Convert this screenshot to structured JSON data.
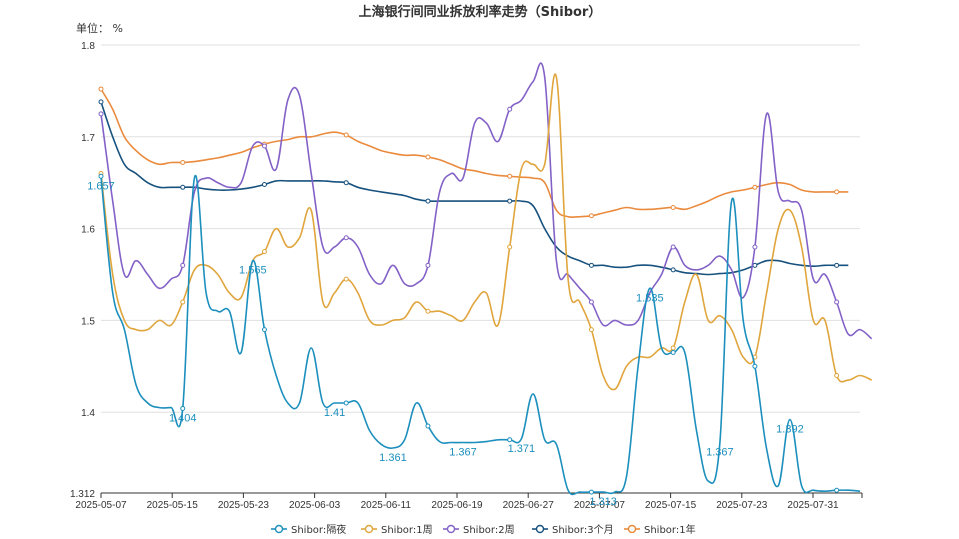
{
  "chart_data": {
    "type": "line",
    "title": "上海银行间同业拆放利率走势（Shibor）",
    "unit_label": "单位：  %",
    "x_ticks": [
      "2025-05-07",
      "2025-05-15",
      "2025-05-23",
      "2025-06-03",
      "2025-06-11",
      "2025-06-19",
      "2025-06-27",
      "2025-07-07",
      "2025-07-15",
      "2025-07-23",
      "2025-07-31"
    ],
    "y_ticks": [
      "1.8",
      "1.7",
      "1.6",
      "1.5",
      "1.4",
      "1.312"
    ],
    "ylim": [
      1.312,
      1.8
    ],
    "grid": true,
    "legend_position": "bottom",
    "series": [
      {
        "name": "Shibor:隔夜",
        "color": "#1c8fbd",
        "values": [
          1.657,
          1.53,
          1.49,
          1.43,
          1.41,
          1.405,
          1.405,
          1.404,
          1.655,
          1.53,
          1.51,
          1.51,
          1.465,
          1.565,
          1.49,
          1.44,
          1.41,
          1.41,
          1.47,
          1.41,
          1.41,
          1.41,
          1.41,
          1.38,
          1.365,
          1.361,
          1.37,
          1.41,
          1.385,
          1.368,
          1.367,
          1.367,
          1.367,
          1.368,
          1.37,
          1.37,
          1.371,
          1.42,
          1.37,
          1.365,
          1.315,
          1.313,
          1.313,
          1.313,
          1.313,
          1.33,
          1.45,
          1.535,
          1.47,
          1.465,
          1.465,
          1.38,
          1.325,
          1.367,
          1.63,
          1.5,
          1.45,
          1.36,
          1.32,
          1.392,
          1.32,
          1.315,
          1.314,
          1.315,
          1.315,
          1.314
        ]
      },
      {
        "name": "Shibor:1周",
        "color": "#e0a53c",
        "values": [
          1.66,
          1.55,
          1.5,
          1.49,
          1.49,
          1.5,
          1.495,
          1.52,
          1.555,
          1.56,
          1.55,
          1.53,
          1.525,
          1.565,
          1.575,
          1.6,
          1.58,
          1.59,
          1.62,
          1.52,
          1.53,
          1.545,
          1.53,
          1.5,
          1.495,
          1.5,
          1.503,
          1.52,
          1.51,
          1.51,
          1.505,
          1.5,
          1.52,
          1.53,
          1.495,
          1.58,
          1.665,
          1.67,
          1.67,
          1.765,
          1.545,
          1.52,
          1.49,
          1.44,
          1.425,
          1.45,
          1.46,
          1.46,
          1.47,
          1.47,
          1.52,
          1.55,
          1.5,
          1.505,
          1.49,
          1.46,
          1.46,
          1.53,
          1.6,
          1.62,
          1.58,
          1.5,
          1.5,
          1.44,
          1.435,
          1.44,
          1.435
        ]
      },
      {
        "name": "Shibor:2周",
        "color": "#8361c7",
        "values": [
          1.725,
          1.63,
          1.55,
          1.565,
          1.55,
          1.535,
          1.545,
          1.56,
          1.64,
          1.655,
          1.65,
          1.645,
          1.65,
          1.69,
          1.69,
          1.665,
          1.74,
          1.745,
          1.66,
          1.58,
          1.58,
          1.59,
          1.58,
          1.55,
          1.54,
          1.56,
          1.54,
          1.54,
          1.56,
          1.64,
          1.66,
          1.655,
          1.715,
          1.715,
          1.695,
          1.73,
          1.74,
          1.76,
          1.765,
          1.565,
          1.55,
          1.535,
          1.52,
          1.495,
          1.5,
          1.495,
          1.5,
          1.53,
          1.55,
          1.58,
          1.56,
          1.555,
          1.56,
          1.57,
          1.555,
          1.525,
          1.58,
          1.725,
          1.64,
          1.63,
          1.62,
          1.545,
          1.55,
          1.52,
          1.485,
          1.49,
          1.48
        ]
      },
      {
        "name": "Shibor:3个月",
        "color": "#17517e",
        "values": [
          1.738,
          1.7,
          1.67,
          1.66,
          1.65,
          1.645,
          1.645,
          1.645,
          1.645,
          1.643,
          1.642,
          1.642,
          1.643,
          1.645,
          1.648,
          1.652,
          1.652,
          1.652,
          1.652,
          1.652,
          1.651,
          1.65,
          1.645,
          1.642,
          1.64,
          1.638,
          1.636,
          1.632,
          1.63,
          1.63,
          1.63,
          1.63,
          1.63,
          1.63,
          1.63,
          1.63,
          1.63,
          1.625,
          1.6,
          1.58,
          1.57,
          1.565,
          1.56,
          1.56,
          1.558,
          1.558,
          1.56,
          1.56,
          1.558,
          1.555,
          1.552,
          1.551,
          1.55,
          1.551,
          1.552,
          1.555,
          1.56,
          1.565,
          1.565,
          1.562,
          1.56,
          1.559,
          1.56,
          1.56,
          1.56
        ]
      },
      {
        "name": "Shibor:1年",
        "color": "#ea8a3c",
        "values": [
          1.752,
          1.73,
          1.7,
          1.685,
          1.675,
          1.67,
          1.672,
          1.672,
          1.673,
          1.675,
          1.677,
          1.68,
          1.683,
          1.688,
          1.692,
          1.695,
          1.697,
          1.7,
          1.7,
          1.703,
          1.705,
          1.702,
          1.695,
          1.69,
          1.685,
          1.682,
          1.68,
          1.68,
          1.678,
          1.675,
          1.67,
          1.665,
          1.663,
          1.66,
          1.658,
          1.657,
          1.656,
          1.655,
          1.65,
          1.62,
          1.613,
          1.613,
          1.614,
          1.617,
          1.62,
          1.623,
          1.621,
          1.621,
          1.622,
          1.623,
          1.621,
          1.625,
          1.63,
          1.636,
          1.64,
          1.642,
          1.645,
          1.648,
          1.65,
          1.648,
          1.642,
          1.64,
          1.64,
          1.64,
          1.64
        ]
      }
    ],
    "data_labels": [
      {
        "series": 0,
        "index": 0,
        "text": "1.657"
      },
      {
        "series": 0,
        "index": 7,
        "text": "1.404"
      },
      {
        "series": 0,
        "index": 13,
        "text": "1.565"
      },
      {
        "series": 0,
        "index": 20,
        "text": "1.41"
      },
      {
        "series": 0,
        "index": 25,
        "text": "1.361"
      },
      {
        "series": 0,
        "index": 31,
        "text": "1.367"
      },
      {
        "series": 0,
        "index": 36,
        "text": "1.371"
      },
      {
        "series": 0,
        "index": 43,
        "text": "1.313"
      },
      {
        "series": 0,
        "index": 47,
        "text": "1.535"
      },
      {
        "series": 0,
        "index": 53,
        "text": "1.367"
      },
      {
        "series": 0,
        "index": 59,
        "text": "1.392"
      }
    ],
    "markers_every": 7
  }
}
